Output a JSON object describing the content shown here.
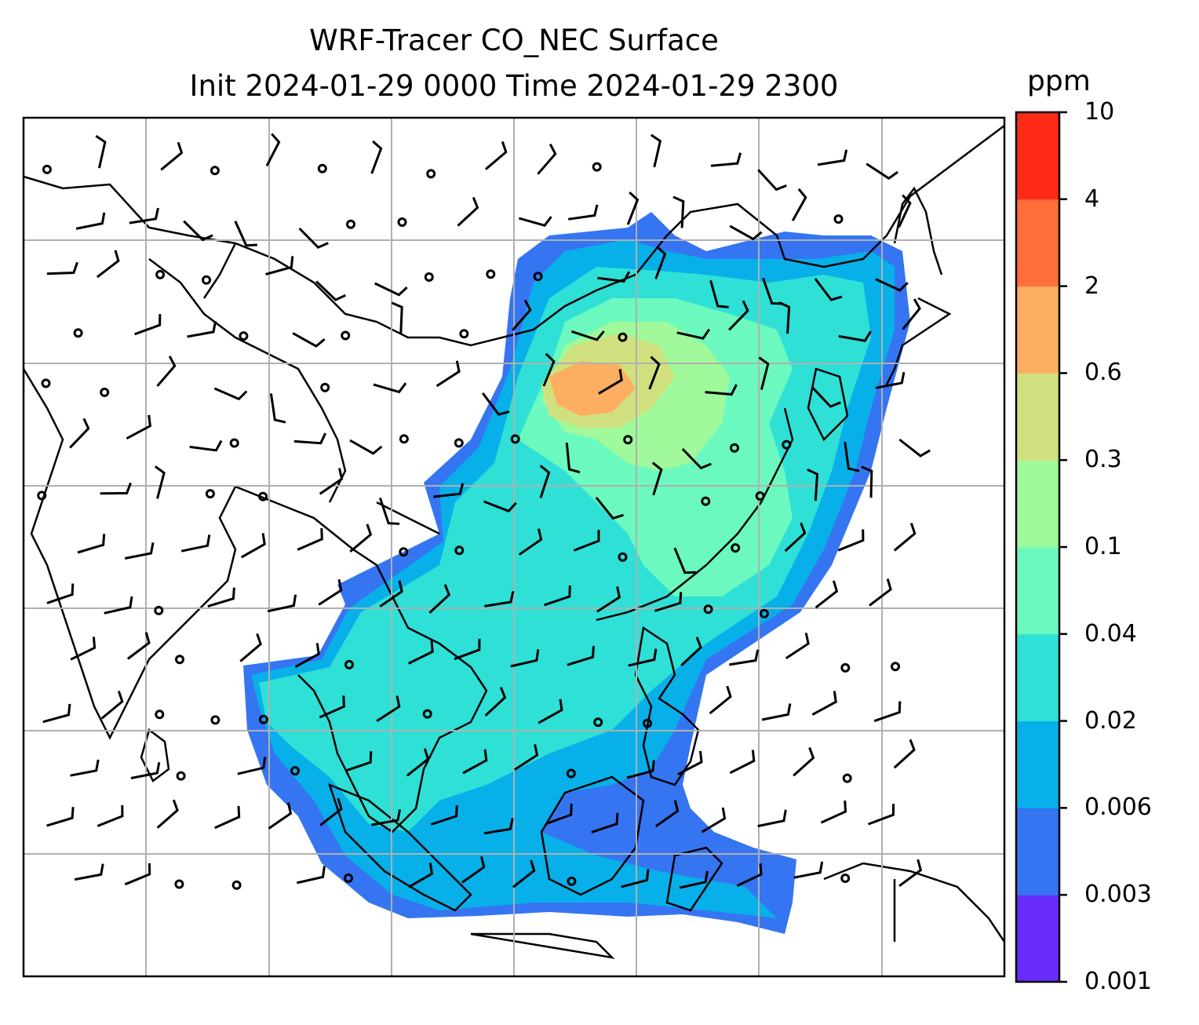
{
  "title": {
    "line1": "WRF-Tracer CO_NEC Surface",
    "line2": "Init 2024-01-29 0000 Time 2024-01-29 2300"
  },
  "colorbar": {
    "unit": "ppm",
    "levels": [
      {
        "label": "0.001",
        "color": "#6a2cfa"
      },
      {
        "label": "0.003",
        "color": "#3575f2"
      },
      {
        "label": "0.006",
        "color": "#08b0ea"
      },
      {
        "label": "0.02",
        "color": "#2fe0d6"
      },
      {
        "label": "0.04",
        "color": "#6bf9bf"
      },
      {
        "label": "0.1",
        "color": "#a0f99a"
      },
      {
        "label": "0.3",
        "color": "#d1e07e"
      },
      {
        "label": "0.6",
        "color": "#fdae61"
      },
      {
        "label": "2",
        "color": "#ff6e3b"
      },
      {
        "label": "4",
        "color": "#ff2a16"
      },
      {
        "label": "10",
        "color": null
      }
    ]
  },
  "map": {
    "gridlines": true,
    "gridline_color": "#b0b0b0",
    "coastline_color": "#000000",
    "wind": "barbs"
  }
}
